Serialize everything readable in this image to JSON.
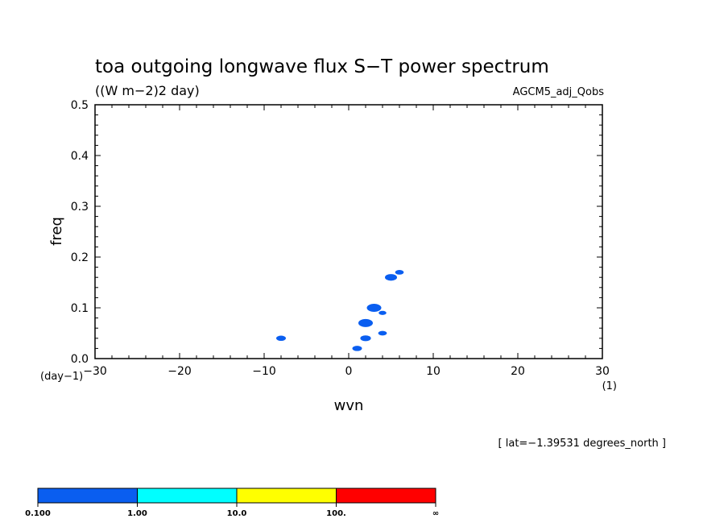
{
  "chart_data": {
    "type": "contour",
    "title": "toa outgoing longwave flux S−T power spectrum",
    "units": "((W m−2)2 day)",
    "dataset": "AGCM5_adj_Qobs",
    "xlabel": "wvn",
    "ylabel": "freq",
    "xunit": "(1)",
    "yunit": "(day−1)",
    "xlim": [
      -30,
      30
    ],
    "ylim": [
      0,
      0.5
    ],
    "xticks": [
      {
        "value": -30,
        "label": "−30"
      },
      {
        "value": -20,
        "label": "−20"
      },
      {
        "value": -10,
        "label": "−10"
      },
      {
        "value": 0,
        "label": "0"
      },
      {
        "value": 10,
        "label": "10"
      },
      {
        "value": 20,
        "label": "20"
      },
      {
        "value": 30,
        "label": "30"
      }
    ],
    "yticks": [
      {
        "value": 0.0,
        "label": "0.0"
      },
      {
        "value": 0.1,
        "label": "0.1"
      },
      {
        "value": 0.2,
        "label": "0.2"
      },
      {
        "value": 0.3,
        "label": "0.3"
      },
      {
        "value": 0.4,
        "label": "0.4"
      },
      {
        "value": 0.5,
        "label": "0.5"
      }
    ],
    "blobs": [
      {
        "x": -8,
        "y": 0.04,
        "size": 0.5
      },
      {
        "x": 1,
        "y": 0.02,
        "size": 0.5
      },
      {
        "x": 2,
        "y": 0.04,
        "size": 0.6
      },
      {
        "x": 2,
        "y": 0.07,
        "size": 1.0
      },
      {
        "x": 3,
        "y": 0.1,
        "size": 1.0
      },
      {
        "x": 4,
        "y": 0.05,
        "size": 0.4
      },
      {
        "x": 4,
        "y": 0.09,
        "size": 0.3
      },
      {
        "x": 5,
        "y": 0.16,
        "size": 0.75
      },
      {
        "x": 6,
        "y": 0.17,
        "size": 0.4
      }
    ],
    "blob_color": "#0a5ef0",
    "annotation": "[ lat=−1.39531 degrees_north ]",
    "colorbar": {
      "colors": [
        "#0a5ef0",
        "#00ffff",
        "#ffff00",
        "#ff0000"
      ],
      "labels": [
        "0.100",
        "1.00",
        "10.0",
        "100.",
        "∞"
      ]
    }
  }
}
